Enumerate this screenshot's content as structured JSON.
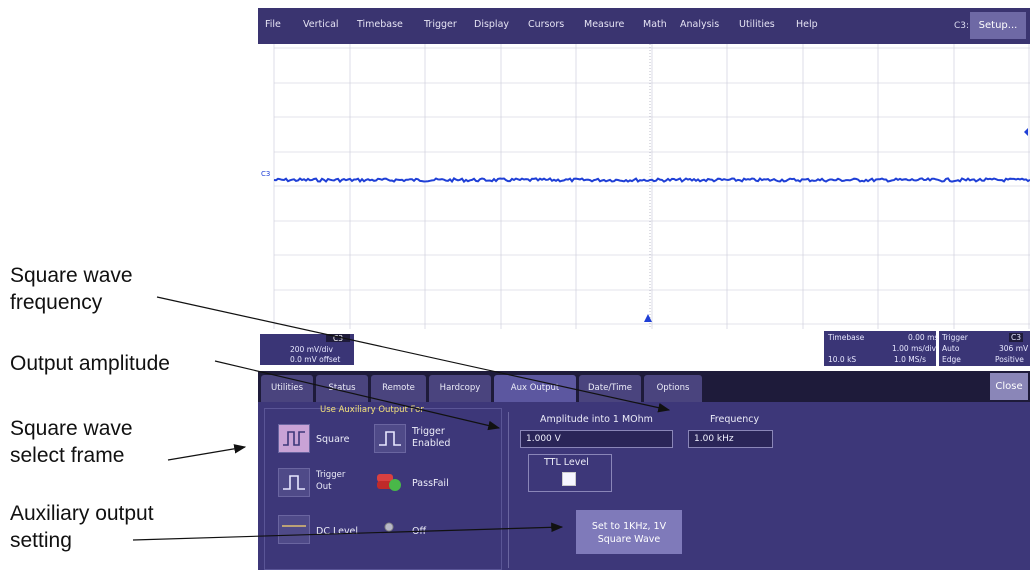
{
  "annotations": {
    "square_wave_frequency": [
      "Square wave",
      "frequency"
    ],
    "output_amplitude": "Output amplitude",
    "square_wave_select_frame": [
      "Square wave",
      "select frame"
    ],
    "auxiliary_output_setting": [
      "Auxiliary output",
      "setting"
    ]
  },
  "menu": {
    "items": [
      "File",
      "Vertical",
      "Timebase",
      "Trigger",
      "Display",
      "Cursors",
      "Measure",
      "Math",
      "Analysis",
      "Utilities",
      "Help"
    ],
    "channel": "C3:",
    "setup": "Setup..."
  },
  "waveform": {
    "label": "C3",
    "color": "#1f3fd6"
  },
  "readouts": {
    "channel": {
      "vdiv": "200 mV/div",
      "offset": "0.0 mV offset"
    },
    "timebase": {
      "title": "Timebase",
      "delay": "0.00 ms",
      "tdiv": "1.00 ms/div",
      "samples": "10.0 kS",
      "rate": "1.0 MS/s"
    },
    "trigger": {
      "title": "Trigger",
      "channel": "C3",
      "mode": "Auto",
      "level": "306 mV",
      "type": "Edge",
      "slope": "Positive"
    }
  },
  "tabs": [
    "Utilities",
    "Status",
    "Remote",
    "Hardcopy",
    "Aux Output",
    "Date/Time",
    "Options"
  ],
  "active_tab": "Aux Output",
  "close": "Close",
  "panel": {
    "group_title": "Use Auxiliary Output For",
    "options": {
      "square": "Square",
      "trigger_enabled": [
        "Trigger",
        "Enabled"
      ],
      "trigger_out": [
        "Trigger",
        "Out"
      ],
      "pass_fail": "PassFail",
      "dc_level": "DC Level",
      "off": "Off"
    },
    "amplitude_label": "Amplitude into 1 MOhm",
    "amplitude_value": "1.000 V",
    "frequency_label": "Frequency",
    "frequency_value": "1.00 kHz",
    "ttl_label": "TTL Level",
    "set_button": [
      "Set to 1KHz, 1V",
      "Square Wave"
    ]
  }
}
